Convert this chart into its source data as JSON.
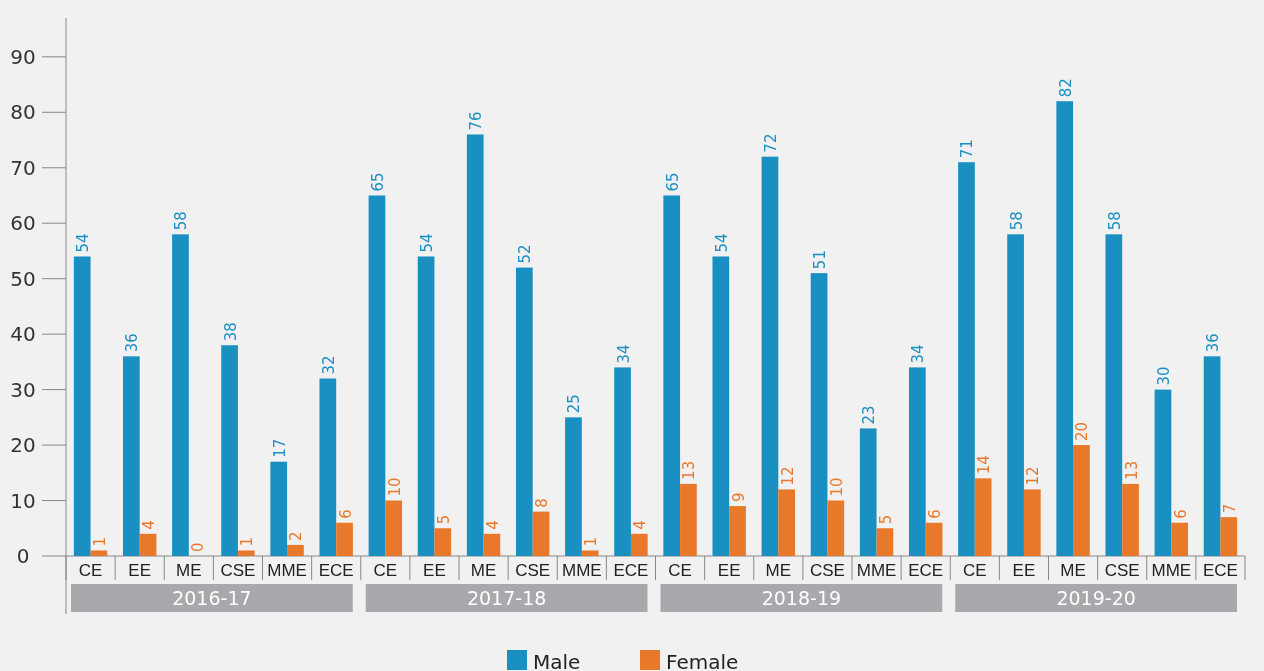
{
  "chart_data": {
    "type": "bar",
    "categories": [
      "CE",
      "EE",
      "ME",
      "CSE",
      "MME",
      "ECE",
      "CE",
      "EE",
      "ME",
      "CSE",
      "MME",
      "ECE",
      "CE",
      "EE",
      "ME",
      "CSE",
      "MME",
      "ECE",
      "CE",
      "EE",
      "ME",
      "CSE",
      "MME",
      "ECE"
    ],
    "series": [
      {
        "name": "Male",
        "color": "#1a8fc2",
        "values": [
          54,
          36,
          58,
          38,
          17,
          32,
          65,
          54,
          76,
          52,
          25,
          34,
          65,
          54,
          72,
          51,
          23,
          34,
          71,
          58,
          82,
          58,
          30,
          36
        ]
      },
      {
        "name": "Female",
        "color": "#e8792a",
        "values": [
          1,
          4,
          0,
          1,
          2,
          6,
          10,
          5,
          4,
          8,
          1,
          4,
          13,
          9,
          12,
          10,
          5,
          6,
          14,
          12,
          20,
          13,
          6,
          7
        ]
      }
    ],
    "annotations": [
      "2016-17",
      "2017-18",
      "2018-19",
      "2019-20"
    ],
    "ylim": [
      0,
      97
    ],
    "yticks": [
      0,
      10,
      20,
      30,
      40,
      50,
      60,
      70,
      80,
      90
    ],
    "data_labels": true,
    "grid": false,
    "legend": "bottom"
  }
}
